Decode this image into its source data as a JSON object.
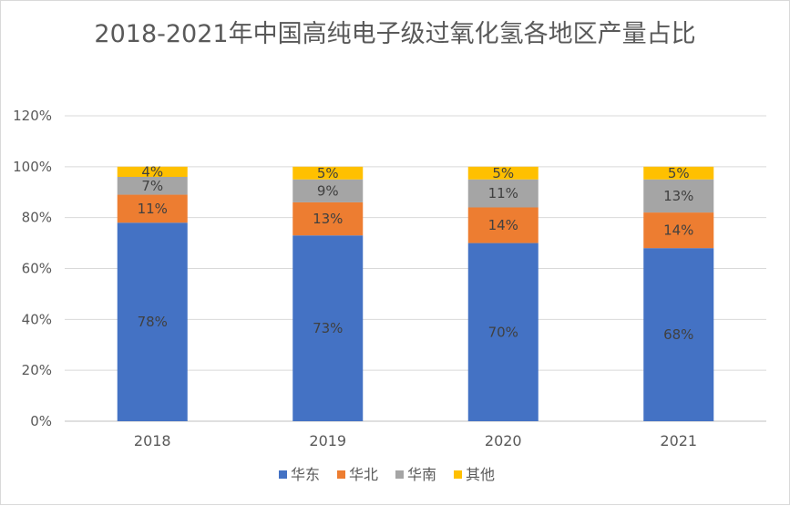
{
  "chart_data": {
    "type": "bar",
    "stacked": true,
    "title": "2018-2021年中国高纯电子级过氧化氢各地区产量占比",
    "xlabel": "",
    "ylabel": "",
    "categories": [
      "2018",
      "2019",
      "2020",
      "2021"
    ],
    "ylim": [
      0,
      120
    ],
    "yticks": [
      0,
      20,
      40,
      60,
      80,
      100,
      120
    ],
    "ytick_labels": [
      "0%",
      "20%",
      "40%",
      "60%",
      "80%",
      "100%",
      "120%"
    ],
    "grid": true,
    "legend_position": "bottom",
    "series": [
      {
        "name": "华东",
        "color": "#4472C4",
        "values": [
          78,
          73,
          70,
          68
        ],
        "labels": [
          "78%",
          "73%",
          "70%",
          "68%"
        ]
      },
      {
        "name": "华北",
        "color": "#ED7D31",
        "values": [
          11,
          13,
          14,
          14
        ],
        "labels": [
          "11%",
          "13%",
          "14%",
          "14%"
        ]
      },
      {
        "name": "华南",
        "color": "#A5A5A5",
        "values": [
          7,
          9,
          11,
          13
        ],
        "labels": [
          "7%",
          "9%",
          "11%",
          "13%"
        ]
      },
      {
        "name": "其他",
        "color": "#FFC000",
        "values": [
          4,
          5,
          5,
          5
        ],
        "labels": [
          "4%",
          "5%",
          "5%",
          "5%"
        ]
      }
    ]
  }
}
